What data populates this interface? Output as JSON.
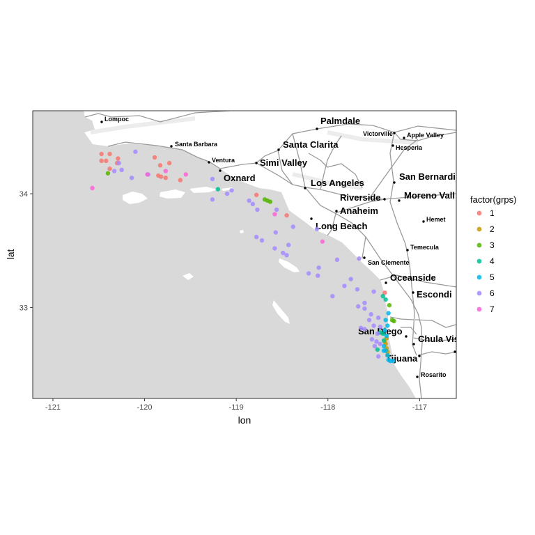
{
  "chart_data": {
    "type": "scatter",
    "xlabel": "lon",
    "ylabel": "lat",
    "xlim": [
      -121.22,
      -116.6
    ],
    "ylim": [
      32.2,
      34.73
    ],
    "x_ticks": [
      -121,
      -120,
      -119,
      -118,
      -117
    ],
    "x_tick_labels": [
      "-121",
      "-120",
      "-119",
      "-118",
      "-117"
    ],
    "y_ticks": [
      33,
      34
    ],
    "y_tick_labels": [
      "33",
      "34"
    ],
    "legend": {
      "title": "factor(grps)",
      "placement": "right",
      "entries": [
        "1",
        "2",
        "3",
        "4",
        "5",
        "6",
        "7"
      ]
    },
    "series": [
      {
        "name": "1",
        "color": "#F8766D",
        "points": [
          [
            -120.47,
            34.35
          ],
          [
            -120.38,
            34.35
          ],
          [
            -120.29,
            34.31
          ],
          [
            -120.47,
            34.29
          ],
          [
            -120.42,
            34.29
          ],
          [
            -120.3,
            34.27
          ],
          [
            -120.38,
            34.22
          ],
          [
            -119.89,
            34.32
          ],
          [
            -119.73,
            34.27
          ],
          [
            -119.83,
            34.25
          ],
          [
            -119.85,
            34.16
          ],
          [
            -119.82,
            34.15
          ],
          [
            -119.77,
            34.14
          ],
          [
            -119.61,
            34.12
          ],
          [
            -118.78,
            33.99
          ],
          [
            -118.45,
            33.81
          ],
          [
            -117.38,
            33.13
          ]
        ]
      },
      {
        "name": "2",
        "color": "#C49A00",
        "points": [
          [
            -117.36,
            32.73
          ],
          [
            -117.37,
            32.68
          ],
          [
            -117.36,
            32.64
          ],
          [
            -117.35,
            32.61
          ],
          [
            -117.35,
            32.58
          ],
          [
            -117.38,
            32.7
          ]
        ]
      },
      {
        "name": "3",
        "color": "#53B400",
        "points": [
          [
            -120.4,
            34.18
          ],
          [
            -118.69,
            33.95
          ],
          [
            -118.66,
            33.94
          ],
          [
            -118.63,
            33.93
          ],
          [
            -117.33,
            33.02
          ],
          [
            -117.3,
            32.89
          ],
          [
            -117.28,
            32.88
          ]
        ]
      },
      {
        "name": "4",
        "color": "#00C094",
        "points": [
          [
            -119.2,
            34.04
          ],
          [
            -117.4,
            33.1
          ],
          [
            -117.37,
            33.07
          ],
          [
            -117.43,
            32.78
          ],
          [
            -117.4,
            32.77
          ],
          [
            -117.39,
            32.71
          ],
          [
            -117.46,
            32.63
          ]
        ]
      },
      {
        "name": "5",
        "color": "#00B6EB",
        "points": [
          [
            -117.34,
            32.95
          ],
          [
            -117.37,
            32.89
          ],
          [
            -117.35,
            32.84
          ],
          [
            -117.38,
            32.8
          ],
          [
            -117.36,
            32.75
          ],
          [
            -117.39,
            32.66
          ],
          [
            -117.37,
            32.62
          ],
          [
            -117.35,
            32.58
          ],
          [
            -117.34,
            32.54
          ],
          [
            -117.32,
            32.53
          ],
          [
            -117.29,
            32.53
          ],
          [
            -117.39,
            32.62
          ]
        ]
      },
      {
        "name": "6",
        "color": "#A58AFF",
        "points": [
          [
            -120.1,
            34.37
          ],
          [
            -120.28,
            34.27
          ],
          [
            -120.33,
            34.2
          ],
          [
            -120.25,
            34.21
          ],
          [
            -120.14,
            34.14
          ],
          [
            -119.96,
            34.17
          ],
          [
            -119.26,
            34.13
          ],
          [
            -119.05,
            34.03
          ],
          [
            -119.1,
            34.0
          ],
          [
            -119.26,
            33.95
          ],
          [
            -118.86,
            33.94
          ],
          [
            -118.82,
            33.91
          ],
          [
            -118.56,
            33.86
          ],
          [
            -118.77,
            33.86
          ],
          [
            -118.38,
            33.71
          ],
          [
            -118.57,
            33.66
          ],
          [
            -118.12,
            33.69
          ],
          [
            -118.43,
            33.55
          ],
          [
            -118.78,
            33.62
          ],
          [
            -118.72,
            33.59
          ],
          [
            -118.58,
            33.52
          ],
          [
            -118.49,
            33.48
          ],
          [
            -118.45,
            33.46
          ],
          [
            -118.1,
            33.35
          ],
          [
            -118.21,
            33.3
          ],
          [
            -117.9,
            33.42
          ],
          [
            -117.66,
            33.43
          ],
          [
            -118.11,
            33.28
          ],
          [
            -117.75,
            33.25
          ],
          [
            -117.82,
            33.19
          ],
          [
            -117.68,
            33.16
          ],
          [
            -117.5,
            33.14
          ],
          [
            -117.6,
            33.04
          ],
          [
            -117.95,
            33.1
          ],
          [
            -117.67,
            33.01
          ],
          [
            -117.6,
            32.99
          ],
          [
            -117.53,
            32.94
          ],
          [
            -117.45,
            32.91
          ],
          [
            -117.55,
            32.89
          ],
          [
            -117.5,
            32.84
          ],
          [
            -117.6,
            32.81
          ],
          [
            -117.43,
            32.83
          ],
          [
            -117.46,
            32.77
          ],
          [
            -117.47,
            32.7
          ],
          [
            -117.52,
            32.72
          ],
          [
            -117.49,
            32.66
          ],
          [
            -117.45,
            32.57
          ],
          [
            -117.43,
            32.68
          ],
          [
            -117.64,
            32.82
          ]
        ]
      },
      {
        "name": "7",
        "color": "#FB61D7",
        "points": [
          [
            -120.57,
            34.05
          ],
          [
            -119.97,
            34.17
          ],
          [
            -119.77,
            34.2
          ],
          [
            -119.55,
            34.17
          ],
          [
            -118.58,
            33.82
          ],
          [
            -118.06,
            33.58
          ]
        ]
      }
    ],
    "map_labels": {
      "big": [
        "Palmdale",
        "Santa Clarita",
        "Simi Valley",
        "Oxnard",
        "Los Angeles",
        "Riverside",
        "Anaheim",
        "Long Beach",
        "San Bernardi",
        "Moreno Vall",
        "Oceanside",
        "Escondi",
        "San Diego",
        "Chula Vis",
        "Tijuana"
      ],
      "small": [
        "Lompoc",
        "Santa Barbara",
        "Ventura",
        "Victorville",
        "Apple Valley",
        "Hesperia",
        "Hemet",
        "Temecula",
        "San Clemente",
        "Rosarito"
      ]
    }
  }
}
